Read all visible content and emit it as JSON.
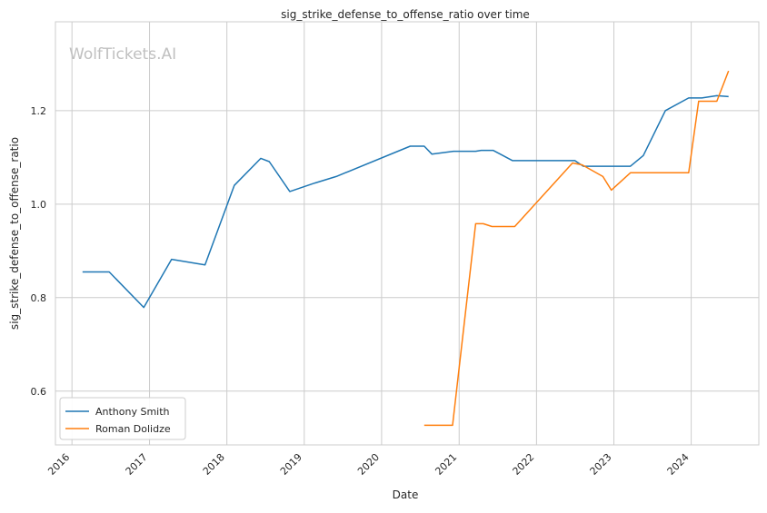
{
  "chart_data": {
    "type": "line",
    "title": "sig_strike_defense_to_offense_ratio over time",
    "xlabel": "Date",
    "ylabel": "sig_strike_defense_to_offense_ratio",
    "watermark": "WolfTickets.AI",
    "x_type": "date",
    "xlim": [
      "2015-10-15",
      "2024-11-15"
    ],
    "ylim": [
      0.485,
      1.39
    ],
    "x_ticks": [
      "2016-01-01",
      "2017-01-01",
      "2018-01-01",
      "2019-01-01",
      "2020-01-01",
      "2021-01-01",
      "2022-01-01",
      "2023-01-01",
      "2024-01-01"
    ],
    "x_tick_labels": [
      "2016",
      "2017",
      "2018",
      "2019",
      "2020",
      "2021",
      "2022",
      "2023",
      "2024"
    ],
    "y_ticks": [
      0.6,
      0.8,
      1.0,
      1.2
    ],
    "y_tick_labels": [
      "0.6",
      "0.8",
      "1.0",
      "1.2"
    ],
    "grid": true,
    "legend_position": "lower-left",
    "series": [
      {
        "name": "Anthony Smith",
        "color": "#1f77b4",
        "points": [
          [
            "2016-02-20",
            0.855
          ],
          [
            "2016-06-25",
            0.855
          ],
          [
            "2016-12-05",
            0.779
          ],
          [
            "2017-04-15",
            0.882
          ],
          [
            "2017-09-20",
            0.87
          ],
          [
            "2018-02-05",
            1.04
          ],
          [
            "2018-06-10",
            1.098
          ],
          [
            "2018-07-20",
            1.091
          ],
          [
            "2018-10-25",
            1.027
          ],
          [
            "2019-02-20",
            1.045
          ],
          [
            "2019-06-01",
            1.059
          ],
          [
            "2020-05-15",
            1.124
          ],
          [
            "2020-07-20",
            1.124
          ],
          [
            "2020-08-25",
            1.107
          ],
          [
            "2020-12-05",
            1.113
          ],
          [
            "2021-03-20",
            1.113
          ],
          [
            "2021-04-15",
            1.115
          ],
          [
            "2021-06-10",
            1.115
          ],
          [
            "2021-09-10",
            1.093
          ],
          [
            "2022-07-01",
            1.093
          ],
          [
            "2022-08-10",
            1.081
          ],
          [
            "2023-03-20",
            1.081
          ],
          [
            "2023-05-20",
            1.104
          ],
          [
            "2023-09-01",
            1.2
          ],
          [
            "2023-12-20",
            1.227
          ],
          [
            "2024-02-20",
            1.227
          ],
          [
            "2024-05-01",
            1.232
          ],
          [
            "2024-06-25",
            1.23
          ]
        ]
      },
      {
        "name": "Roman Dolidze",
        "color": "#ff7f0e",
        "points": [
          [
            "2020-07-20",
            0.527
          ],
          [
            "2020-12-01",
            0.527
          ],
          [
            "2021-03-20",
            0.958
          ],
          [
            "2021-04-25",
            0.958
          ],
          [
            "2021-06-05",
            0.952
          ],
          [
            "2021-09-20",
            0.952
          ],
          [
            "2022-06-20",
            1.088
          ],
          [
            "2022-08-05",
            1.084
          ],
          [
            "2022-11-10",
            1.059
          ],
          [
            "2022-12-20",
            1.03
          ],
          [
            "2023-03-20",
            1.067
          ],
          [
            "2023-12-20",
            1.067
          ],
          [
            "2024-02-05",
            1.22
          ],
          [
            "2024-05-01",
            1.22
          ],
          [
            "2024-06-25",
            1.285
          ]
        ]
      }
    ]
  }
}
